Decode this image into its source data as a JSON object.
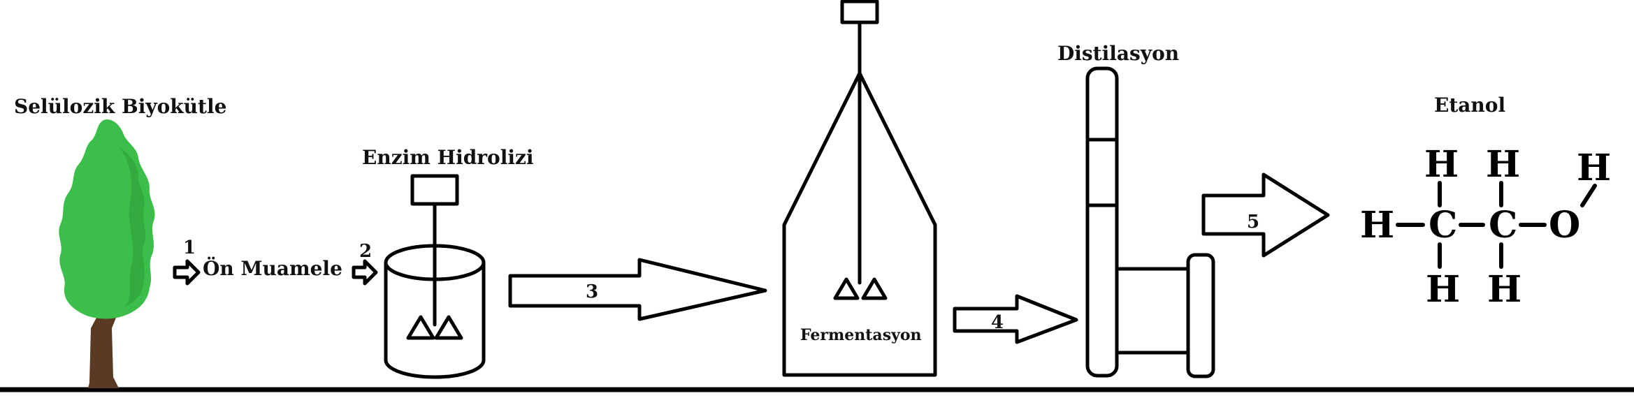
{
  "labels": {
    "biomass": "Selülozik Biyokütle",
    "pretreatment": "Ön Muamele",
    "hydrolysis": "Enzim Hidrolizi",
    "fermentation": "Fermentasyon",
    "distillation": "Distilasyon",
    "ethanol": "Etanol"
  },
  "steps": [
    "1",
    "2",
    "3",
    "4",
    "5"
  ],
  "molecule": {
    "carbon": "C",
    "oxygen": "O",
    "hydrogen": "H"
  },
  "colors": {
    "foliage": "#3cbf4a",
    "foliage_dark": "#2f9e3b",
    "trunk": "#5a3a22",
    "line": "#000000"
  }
}
